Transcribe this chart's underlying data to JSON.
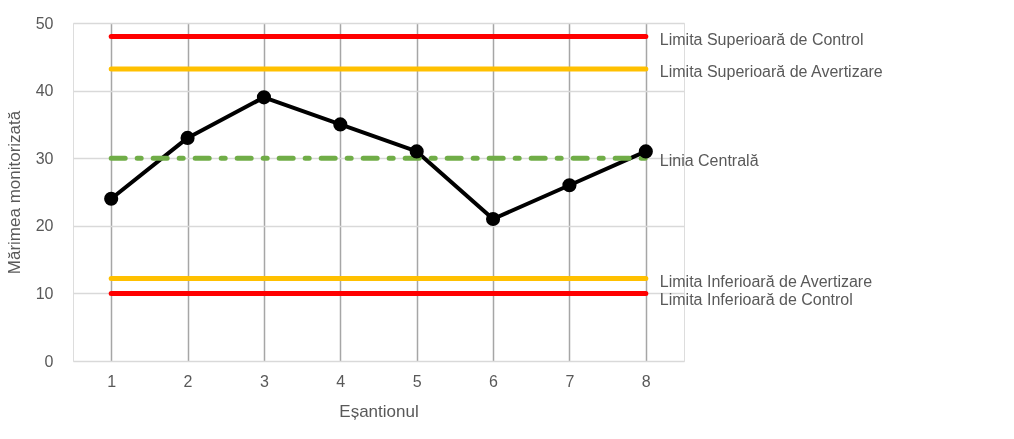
{
  "chart_data": {
    "type": "line",
    "xlabel": "Eșantionul",
    "ylabel": "Mărimea monitorizată",
    "categories": [
      "1",
      "2",
      "3",
      "4",
      "5",
      "6",
      "7",
      "8"
    ],
    "series": [
      {
        "color": "#000000",
        "values": [
          24,
          33,
          39,
          35,
          31,
          21,
          26,
          31
        ]
      }
    ],
    "marker": "circle",
    "line_style": "solid",
    "ylim": [
      0,
      50
    ],
    "yticks": [
      0,
      10,
      20,
      30,
      40,
      50
    ],
    "grid": true,
    "ref_lines": [
      {
        "axis": "y",
        "value": 48,
        "label": "Limita Superioară de Control",
        "color": "#ff0000",
        "line_style": "solid"
      },
      {
        "axis": "y",
        "value": 43.2,
        "label": "Limita Superioară de Avertizare",
        "color": "#ffc000",
        "line_style": "solid"
      },
      {
        "axis": "y",
        "value": 30,
        "label": "Linia Centrală",
        "color": "#70ad47",
        "line_style": "dashdot"
      },
      {
        "axis": "y",
        "value": 12.2,
        "label": "Limita Inferioară de Avertizare",
        "color": "#ffc000",
        "line_style": "solid"
      },
      {
        "axis": "y",
        "value": 10,
        "label": "Limita Inferioară de Control",
        "color": "#ff0000",
        "line_style": "solid"
      }
    ]
  }
}
